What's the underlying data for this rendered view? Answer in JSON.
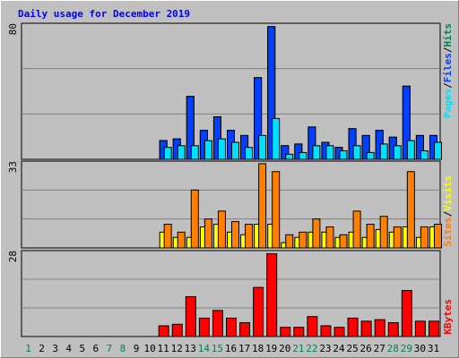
{
  "chart_data": {
    "type": "bar",
    "title": "Daily usage for December 2019",
    "categories": [
      "1",
      "2",
      "3",
      "4",
      "5",
      "6",
      "7",
      "8",
      "9",
      "10",
      "11",
      "12",
      "13",
      "14",
      "15",
      "16",
      "17",
      "18",
      "19",
      "20",
      "21",
      "22",
      "23",
      "24",
      "25",
      "26",
      "27",
      "28",
      "29",
      "30",
      "31"
    ],
    "category_colors": [
      "#00805c",
      "#000000",
      "#000000",
      "#000000",
      "#000000",
      "#000000",
      "#00805c",
      "#00805c",
      "#000000",
      "#000000",
      "#000000",
      "#000000",
      "#000000",
      "#00805c",
      "#00805c",
      "#000000",
      "#000000",
      "#000000",
      "#000000",
      "#000000",
      "#00805c",
      "#00805c",
      "#000000",
      "#000000",
      "#000000",
      "#000000",
      "#000000",
      "#00805c",
      "#00805c",
      "#000000",
      "#000000"
    ],
    "legend_separator": "/",
    "grid_divisions": 3,
    "panels": [
      {
        "ylim": [
          0,
          80
        ],
        "yticks": [
          80
        ],
        "series": [
          {
            "name": "Hits",
            "color": "#00805c",
            "values": [
              0,
              0,
              0,
              0,
              0,
              0,
              0,
              0,
              0,
              0,
              11,
              12,
              37,
              17,
              25,
              17,
              14,
              48,
              78,
              8,
              9,
              19,
              10,
              7,
              18,
              14,
              17,
              13,
              43,
              14,
              14
            ]
          },
          {
            "name": "Files",
            "color": "#0040ff",
            "values": [
              0,
              0,
              0,
              0,
              0,
              0,
              0,
              0,
              0,
              0,
              11,
              12,
              37,
              17,
              25,
              17,
              14,
              48,
              78,
              8,
              9,
              19,
              10,
              7,
              18,
              14,
              17,
              13,
              43,
              14,
              14
            ]
          },
          {
            "name": "Pages",
            "color": "#00e0ff",
            "values": [
              0,
              0,
              0,
              0,
              0,
              0,
              0,
              0,
              0,
              0,
              7,
              8,
              8,
              11,
              12,
              10,
              7,
              14,
              24,
              3,
              4,
              8,
              8,
              5,
              8,
              4,
              9,
              8,
              11,
              5,
              10
            ]
          }
        ]
      },
      {
        "ylim": [
          0,
          33
        ],
        "yticks": [
          33
        ],
        "series": [
          {
            "name": "Sites",
            "color": "#ffff00",
            "values": [
              0,
              0,
              0,
              0,
              0,
              0,
              0,
              0,
              0,
              0,
              6,
              4,
              4,
              8,
              9,
              6,
              5,
              9,
              9,
              2,
              4,
              6,
              6,
              4,
              6,
              4,
              7,
              6,
              8,
              4,
              8
            ]
          },
          {
            "name": "Visits",
            "color": "#ff8000",
            "values": [
              0,
              0,
              0,
              0,
              0,
              0,
              0,
              0,
              0,
              0,
              9,
              6,
              22,
              11,
              14,
              10,
              9,
              32,
              29,
              5,
              6,
              11,
              8,
              5,
              14,
              9,
              12,
              8,
              29,
              8,
              9
            ]
          }
        ]
      },
      {
        "ylim": [
          0,
          28
        ],
        "yticks": [
          28
        ],
        "series": [
          {
            "name": "KBytes",
            "color": "#ff0000",
            "values": [
              0,
              0,
              0,
              0,
              0,
              0,
              0,
              0,
              0,
              0,
              3.5,
              4,
              13,
              6,
              8.5,
              6,
              4.5,
              16,
              27,
              3,
              3,
              6.5,
              3.5,
              3,
              6,
              5,
              5.5,
              4.5,
              15,
              5,
              5
            ]
          }
        ]
      }
    ]
  }
}
